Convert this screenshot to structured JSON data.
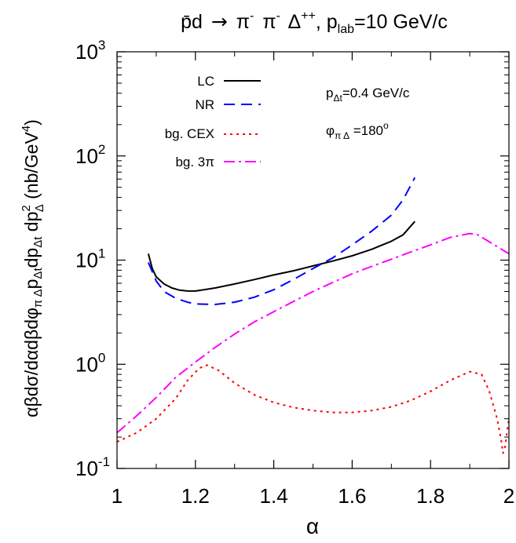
{
  "chart_data": {
    "type": "line",
    "title": {
      "lhs_base": "p̄d",
      "arrow": "→",
      "pi1": "π",
      "pi1_sup": "-",
      "pi2": "π",
      "pi2_sup": "-",
      "delta": "Δ",
      "delta_sup": "++",
      "plab_base": ", p",
      "plab_sub": "lab",
      "plab_value": "=10 GeV/c"
    },
    "xlabel": "α",
    "ylabel": {
      "p1": "αβdσ/dαdβdφ",
      "p1_sub": "π Δ",
      "p2": "p",
      "p2_sub": "Δt",
      "p3": "dp",
      "p3_sub": "Δt",
      "p4": " dp",
      "p4_sup": "2",
      "p4_sub": "Δ",
      "p5": " (nb/GeV",
      "p5_sup": "4",
      "p6": ")"
    },
    "xlim": [
      1,
      2
    ],
    "ylim": [
      0.1,
      1000
    ],
    "yscale": "log",
    "x_ticks": [
      "1",
      "1.2",
      "1.4",
      "1.6",
      "1.8",
      "2"
    ],
    "x_tick_values": [
      1,
      1.2,
      1.4,
      1.6,
      1.8,
      2
    ],
    "y_ticks": [
      {
        "base": "10",
        "exp": "-1",
        "value": 0.1
      },
      {
        "base": "10",
        "exp": "0",
        "value": 1
      },
      {
        "base": "10",
        "exp": "1",
        "value": 10
      },
      {
        "base": "10",
        "exp": "2",
        "value": 100
      },
      {
        "base": "10",
        "exp": "3",
        "value": 1000
      }
    ],
    "legend_placement": "top-left",
    "annotations": {
      "p_label": "p",
      "p_sub": "Δt",
      "p_value": "=0.4 GeV/c",
      "phi_label": "φ",
      "phi_sub": "π Δ",
      "phi_value": " =180",
      "phi_sup": "o"
    },
    "series": [
      {
        "name": "LC",
        "color": "#000000",
        "dash": "solid",
        "x": [
          1.08,
          1.09,
          1.1,
          1.12,
          1.14,
          1.16,
          1.18,
          1.2,
          1.25,
          1.3,
          1.35,
          1.4,
          1.45,
          1.5,
          1.55,
          1.6,
          1.65,
          1.7,
          1.73,
          1.76
        ],
        "y": [
          11.5,
          8.3,
          6.9,
          5.9,
          5.4,
          5.15,
          5.05,
          5.05,
          5.4,
          5.9,
          6.5,
          7.2,
          7.9,
          8.8,
          9.8,
          11.0,
          12.7,
          15.2,
          17.5,
          23.5
        ]
      },
      {
        "name": "NR",
        "color": "#0000ff",
        "dash": "long-dash",
        "x": [
          1.08,
          1.1,
          1.12,
          1.15,
          1.18,
          1.2,
          1.25,
          1.3,
          1.35,
          1.4,
          1.45,
          1.5,
          1.55,
          1.6,
          1.65,
          1.7,
          1.73,
          1.76
        ],
        "y": [
          9.5,
          6.3,
          5.0,
          4.3,
          3.95,
          3.8,
          3.75,
          3.95,
          4.4,
          5.2,
          6.5,
          8.3,
          10.5,
          14.0,
          19.0,
          27.0,
          38.0,
          62.0
        ]
      },
      {
        "name": "bg. CEX",
        "color": "#ff0000",
        "dash": "dotted",
        "x": [
          1.0,
          1.05,
          1.1,
          1.15,
          1.18,
          1.21,
          1.23,
          1.26,
          1.3,
          1.35,
          1.4,
          1.45,
          1.5,
          1.55,
          1.6,
          1.65,
          1.7,
          1.75,
          1.8,
          1.85,
          1.9,
          1.93,
          1.95,
          1.97,
          1.98,
          1.985,
          1.99,
          1.995,
          2.0
        ],
        "y": [
          0.18,
          0.22,
          0.3,
          0.47,
          0.7,
          0.92,
          0.98,
          0.87,
          0.66,
          0.51,
          0.43,
          0.385,
          0.36,
          0.345,
          0.345,
          0.36,
          0.39,
          0.45,
          0.55,
          0.7,
          0.85,
          0.8,
          0.55,
          0.3,
          0.19,
          0.14,
          0.16,
          0.22,
          0.3
        ]
      },
      {
        "name": "bg. 3π",
        "color": "#ff00ff",
        "dash": "dash-dot",
        "x": [
          1.0,
          1.05,
          1.1,
          1.15,
          1.2,
          1.25,
          1.3,
          1.35,
          1.4,
          1.45,
          1.5,
          1.55,
          1.6,
          1.65,
          1.7,
          1.75,
          1.8,
          1.85,
          1.9,
          1.92,
          1.95,
          1.98,
          2.0
        ],
        "y": [
          0.22,
          0.32,
          0.48,
          0.75,
          1.05,
          1.45,
          1.95,
          2.55,
          3.2,
          4.0,
          5.0,
          6.1,
          7.4,
          8.7,
          10.2,
          12.0,
          14.0,
          16.5,
          18.0,
          17.5,
          15.0,
          12.8,
          11.5
        ]
      }
    ]
  }
}
